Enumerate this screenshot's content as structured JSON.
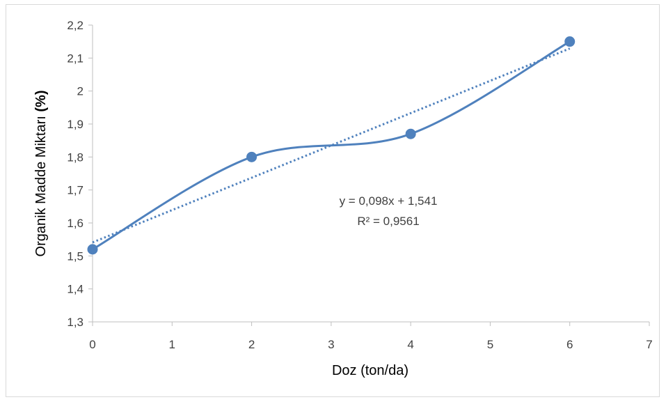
{
  "chart_data": {
    "type": "scatter",
    "title": "",
    "xlabel": "Doz (ton/da)",
    "ylabel_main": "Organik Madde Miktarı ",
    "ylabel_unit": "(%)",
    "xlim": [
      0,
      7
    ],
    "ylim": [
      1.3,
      2.2
    ],
    "x_ticks": [
      0,
      1,
      2,
      3,
      4,
      5,
      6,
      7
    ],
    "y_ticks": [
      1.3,
      1.4,
      1.5,
      1.6,
      1.7,
      1.8,
      1.9,
      2.0,
      2.1,
      2.2
    ],
    "x_tick_labels": [
      "0",
      "1",
      "2",
      "3",
      "4",
      "5",
      "6",
      "7"
    ],
    "y_tick_labels": [
      "1,3",
      "1,4",
      "1,5",
      "1,6",
      "1,7",
      "1,8",
      "1,9",
      "2",
      "2,1",
      "2,2"
    ],
    "grid": false,
    "legend": false,
    "series": [
      {
        "x": [
          0,
          2,
          4,
          6
        ],
        "y": [
          1.52,
          1.8,
          1.87,
          2.15
        ],
        "line": "smooth",
        "markers": true,
        "color": "#4f81bd"
      }
    ],
    "trendline": {
      "type": "linear",
      "slope": 0.098,
      "intercept": 1.541,
      "x_range": [
        0,
        6
      ],
      "style": "dotted",
      "color": "#4f81bd"
    },
    "annotations": {
      "equation": "y = 0,098x + 1,541",
      "r_squared": "R² = 0,9561"
    }
  }
}
